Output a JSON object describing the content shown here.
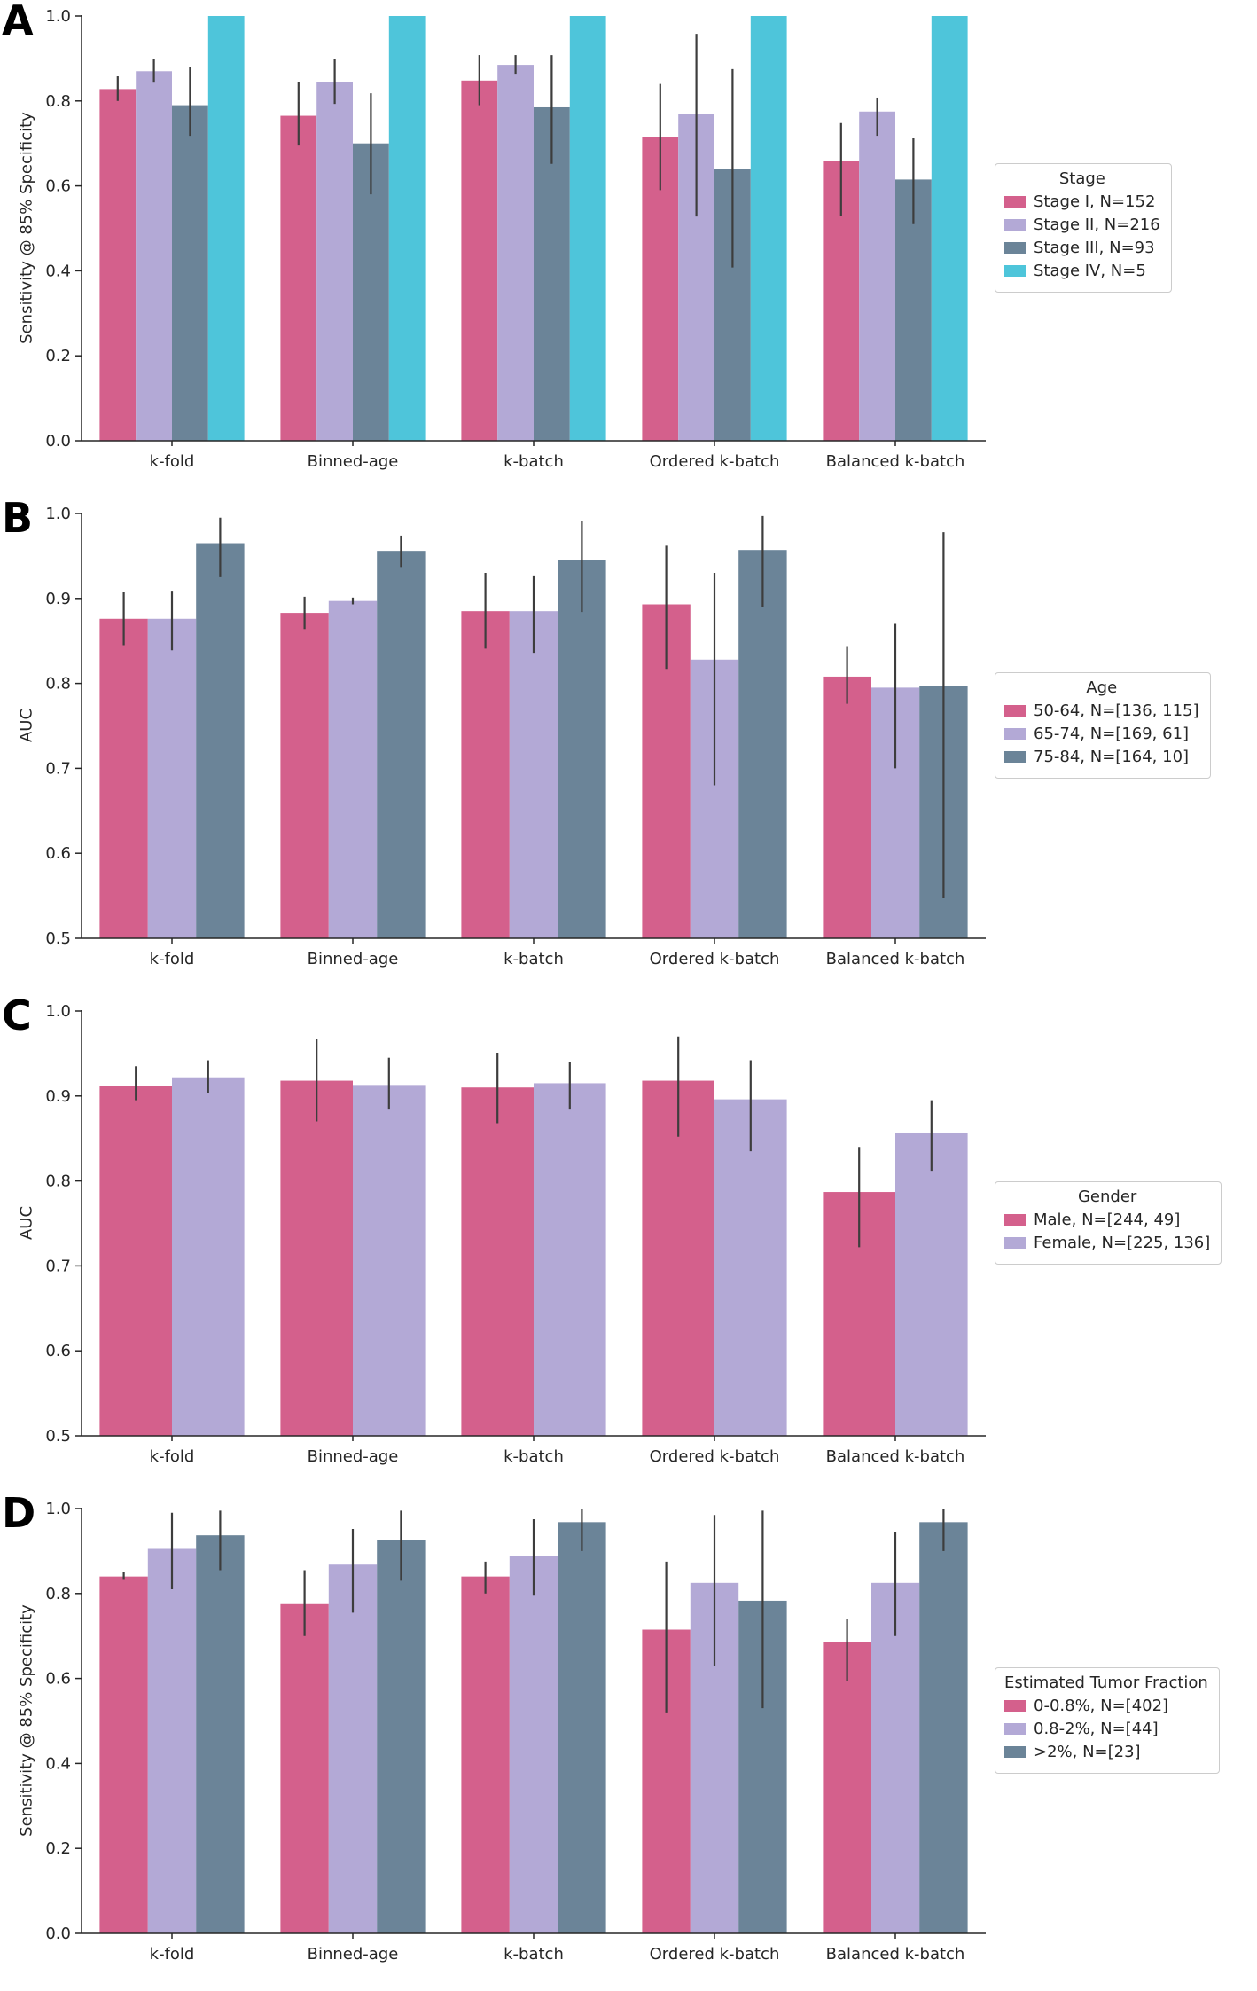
{
  "chart_data": [
    {
      "type": "bar",
      "panel_label": "A",
      "title": "",
      "xlabel": "",
      "ylabel": "Sensitivity @ 85% Specificity",
      "ylim": [
        0.0,
        1.0
      ],
      "yticks": [
        0.0,
        0.2,
        0.4,
        0.6,
        0.8,
        1.0
      ],
      "grid": false,
      "legend_title": "Stage",
      "legend_position": "right",
      "categories": [
        "k-fold",
        "Binned-age",
        "k-batch",
        "Ordered k-batch",
        "Balanced k-batch"
      ],
      "series": [
        {
          "name": "Stage I, N=152",
          "color": "#d4608c",
          "values": [
            0.828,
            0.765,
            0.848,
            0.715,
            0.658
          ],
          "err_low": [
            0.8,
            0.695,
            0.79,
            0.59,
            0.53
          ],
          "err_high": [
            0.858,
            0.845,
            0.908,
            0.84,
            0.748
          ]
        },
        {
          "name": "Stage II, N=216",
          "color": "#b3a9d6",
          "values": [
            0.87,
            0.845,
            0.885,
            0.77,
            0.775
          ],
          "err_low": [
            0.843,
            0.793,
            0.862,
            0.528,
            0.718
          ],
          "err_high": [
            0.898,
            0.898,
            0.908,
            0.958,
            0.808
          ]
        },
        {
          "name": "Stage III, N=93",
          "color": "#6b8498",
          "values": [
            0.79,
            0.7,
            0.785,
            0.64,
            0.615
          ],
          "err_low": [
            0.718,
            0.58,
            0.652,
            0.408,
            0.51
          ],
          "err_high": [
            0.88,
            0.818,
            0.908,
            0.875,
            0.712
          ]
        },
        {
          "name": "Stage IV, N=5",
          "color": "#4ec5da",
          "values": [
            1.0,
            1.0,
            1.0,
            1.0,
            1.0
          ],
          "err_low": [
            1.0,
            1.0,
            1.0,
            1.0,
            1.0
          ],
          "err_high": [
            1.0,
            1.0,
            1.0,
            1.0,
            1.0
          ]
        }
      ]
    },
    {
      "type": "bar",
      "panel_label": "B",
      "title": "",
      "xlabel": "",
      "ylabel": "AUC",
      "ylim": [
        0.5,
        1.0
      ],
      "yticks": [
        0.5,
        0.6,
        0.7,
        0.8,
        0.9,
        1.0
      ],
      "grid": false,
      "legend_title": "Age",
      "legend_position": "right",
      "categories": [
        "k-fold",
        "Binned-age",
        "k-batch",
        "Ordered k-batch",
        "Balanced k-batch"
      ],
      "series": [
        {
          "name": "50-64, N=[136, 115]",
          "color": "#d4608c",
          "values": [
            0.876,
            0.883,
            0.885,
            0.893,
            0.808
          ],
          "err_low": [
            0.845,
            0.864,
            0.841,
            0.817,
            0.776
          ],
          "err_high": [
            0.908,
            0.902,
            0.93,
            0.962,
            0.844
          ]
        },
        {
          "name": "65-74, N=[169, 61]",
          "color": "#b3a9d6",
          "values": [
            0.876,
            0.897,
            0.885,
            0.828,
            0.795
          ],
          "err_low": [
            0.839,
            0.893,
            0.836,
            0.68,
            0.7
          ],
          "err_high": [
            0.909,
            0.901,
            0.927,
            0.93,
            0.87
          ]
        },
        {
          "name": "75-84, N=[164, 10]",
          "color": "#6b8498",
          "values": [
            0.965,
            0.956,
            0.945,
            0.957,
            0.797
          ],
          "err_low": [
            0.925,
            0.937,
            0.884,
            0.89,
            0.548
          ],
          "err_high": [
            0.995,
            0.974,
            0.991,
            0.997,
            0.978
          ]
        }
      ]
    },
    {
      "type": "bar",
      "panel_label": "C",
      "title": "",
      "xlabel": "",
      "ylabel": "AUC",
      "ylim": [
        0.5,
        1.0
      ],
      "yticks": [
        0.5,
        0.6,
        0.7,
        0.8,
        0.9,
        1.0
      ],
      "grid": false,
      "legend_title": "Gender",
      "legend_position": "right",
      "categories": [
        "k-fold",
        "Binned-age",
        "k-batch",
        "Ordered k-batch",
        "Balanced k-batch"
      ],
      "series": [
        {
          "name": "Male, N=[244, 49]",
          "color": "#d4608c",
          "values": [
            0.912,
            0.918,
            0.91,
            0.918,
            0.787
          ],
          "err_low": [
            0.895,
            0.87,
            0.868,
            0.852,
            0.722
          ],
          "err_high": [
            0.935,
            0.967,
            0.951,
            0.97,
            0.84
          ]
        },
        {
          "name": "Female, N=[225, 136]",
          "color": "#b3a9d6",
          "values": [
            0.922,
            0.913,
            0.915,
            0.896,
            0.857
          ],
          "err_low": [
            0.903,
            0.884,
            0.884,
            0.835,
            0.812
          ],
          "err_high": [
            0.942,
            0.945,
            0.94,
            0.942,
            0.895
          ]
        }
      ]
    },
    {
      "type": "bar",
      "panel_label": "D",
      "title": "",
      "xlabel": "",
      "ylabel": "Sensitivity @ 85% Specificity",
      "ylim": [
        0.0,
        1.0
      ],
      "yticks": [
        0.0,
        0.2,
        0.4,
        0.6,
        0.8,
        1.0
      ],
      "grid": false,
      "legend_title": "Estimated Tumor Fraction",
      "legend_position": "right",
      "categories": [
        "k-fold",
        "Binned-age",
        "k-batch",
        "Ordered k-batch",
        "Balanced k-batch"
      ],
      "series": [
        {
          "name": "0-0.8%, N=[402]",
          "color": "#d4608c",
          "values": [
            0.84,
            0.775,
            0.84,
            0.715,
            0.685
          ],
          "err_low": [
            0.832,
            0.7,
            0.8,
            0.52,
            0.595
          ],
          "err_high": [
            0.85,
            0.855,
            0.875,
            0.875,
            0.74
          ]
        },
        {
          "name": "0.8-2%, N=[44]",
          "color": "#b3a9d6",
          "values": [
            0.905,
            0.868,
            0.888,
            0.825,
            0.825
          ],
          "err_low": [
            0.81,
            0.755,
            0.795,
            0.63,
            0.7
          ],
          "err_high": [
            0.99,
            0.952,
            0.975,
            0.985,
            0.945
          ]
        },
        {
          "name": ">2%, N=[23]",
          "color": "#6b8498",
          "values": [
            0.937,
            0.925,
            0.968,
            0.783,
            0.968
          ],
          "err_low": [
            0.855,
            0.83,
            0.9,
            0.53,
            0.9
          ],
          "err_high": [
            0.995,
            0.995,
            0.998,
            0.995,
            1.0
          ]
        }
      ]
    }
  ],
  "style": {
    "errorbar_color": "#3d3d3d",
    "axis_color": "#262626",
    "background": "#ffffff"
  }
}
